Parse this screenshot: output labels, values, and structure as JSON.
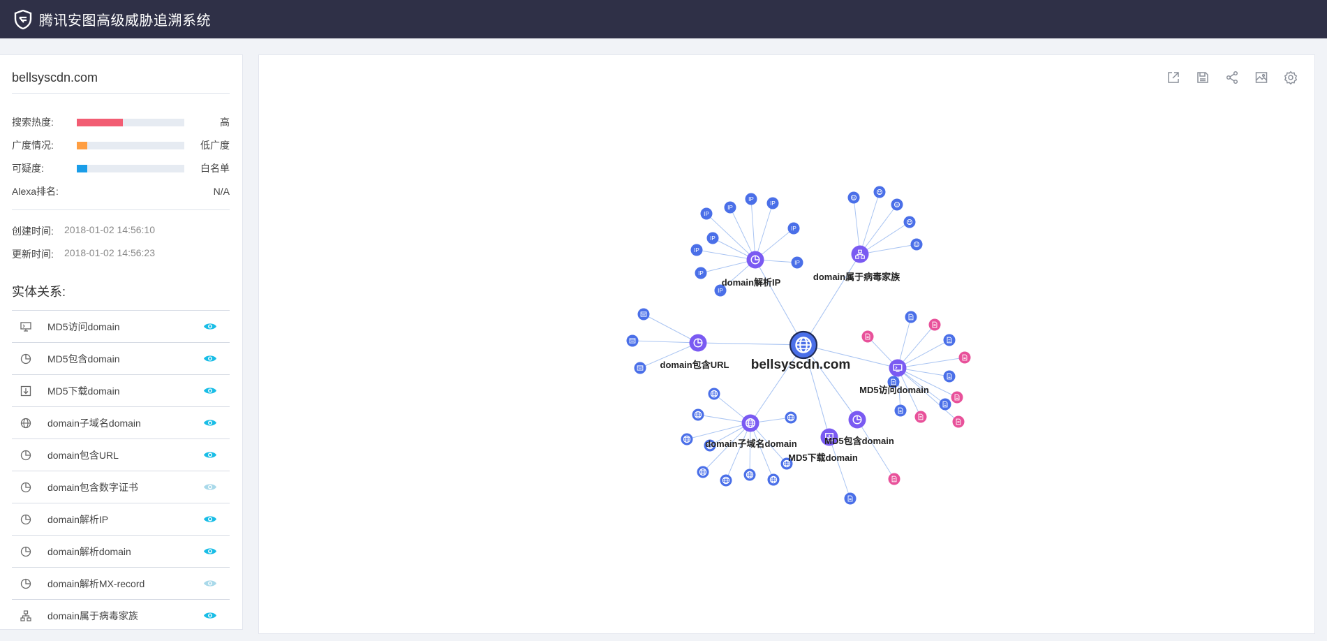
{
  "header": {
    "app_title": "腾讯安图高级威胁追溯系统",
    "logo_icon": "tencent-shield-logo"
  },
  "colors": {
    "header_bg": "#2f3047",
    "hot": "#f25d73",
    "breadth": "#ff9e42",
    "suspicion": "#1a9de8",
    "eye": "#19bde6",
    "eye_faded": "#a9d9ea",
    "node_blue": "#4a6fe8",
    "node_pink": "#e8519a",
    "node_hub": "#7a5af2"
  },
  "sidebar": {
    "domain": "bellsyscdn.com",
    "stats": [
      {
        "label": "搜索热度:",
        "fill": 0.43,
        "color": "#f25d73",
        "value": "高"
      },
      {
        "label": "广度情况:",
        "fill": 0.1,
        "color": "#ff9e42",
        "value": "低广度"
      },
      {
        "label": "可疑度:",
        "fill": 0.1,
        "color": "#1a9de8",
        "value": "白名单"
      }
    ],
    "alexa": {
      "label": "Alexa排名:",
      "value": "N/A"
    },
    "created": {
      "label": "创建时间:",
      "value": "2018-01-02 14:56:10"
    },
    "updated": {
      "label": "更新时间:",
      "value": "2018-01-02 14:56:23"
    },
    "relations_heading": "实体关系:",
    "relations": [
      {
        "label": "MD5访问domain",
        "icon": "monitor-icon",
        "visible": true
      },
      {
        "label": "MD5包含domain",
        "icon": "pie-icon",
        "visible": true
      },
      {
        "label": "MD5下载domain",
        "icon": "download-icon",
        "visible": true
      },
      {
        "label": "domain子域名domain",
        "icon": "globe-icon",
        "visible": true
      },
      {
        "label": "domain包含URL",
        "icon": "pie-icon",
        "visible": true
      },
      {
        "label": "domain包含数字证书",
        "icon": "pie-icon",
        "visible": false
      },
      {
        "label": "domain解析IP",
        "icon": "pie-icon",
        "visible": true
      },
      {
        "label": "domain解析domain",
        "icon": "pie-icon",
        "visible": true
      },
      {
        "label": "domain解析MX-record",
        "icon": "pie-icon",
        "visible": false
      },
      {
        "label": "domain属于病毒家族",
        "icon": "hierarchy-icon",
        "visible": true
      }
    ]
  },
  "toolbar": [
    "external-link-icon",
    "save-icon",
    "share-icon",
    "image-icon",
    "settings-icon"
  ],
  "graph": {
    "center": {
      "label": "bellsyscdn.com",
      "icon": "globe"
    },
    "hubs": [
      {
        "id": "ip",
        "label": "domain解析IP",
        "icon": "pie",
        "leaves": {
          "icon": "ip",
          "color": "blue",
          "count": 11
        }
      },
      {
        "id": "fam",
        "label": "domain属于病毒家族",
        "icon": "hierarchy",
        "leaves": {
          "icon": "virus",
          "color": "blue",
          "count": 5
        }
      },
      {
        "id": "url",
        "label": "domain包含URL",
        "icon": "pie",
        "leaves": {
          "icon": "url",
          "color": "blue",
          "count": 3
        }
      },
      {
        "id": "visit",
        "label": "MD5访问domain",
        "icon": "monitor",
        "leaves": {
          "icon": "file",
          "color": "mixed",
          "count": 12
        }
      },
      {
        "id": "sub",
        "label": "domain子域名domain",
        "icon": "globe",
        "leaves": {
          "icon": "globe",
          "color": "blue",
          "count": 11
        }
      },
      {
        "id": "contain",
        "label": "MD5包含domain",
        "icon": "pie",
        "leaves": {
          "icon": "file",
          "color": "pink",
          "count": 1
        }
      },
      {
        "id": "dl",
        "label": "MD5下载domain",
        "icon": "download",
        "leaves": {
          "icon": "file",
          "color": "blue",
          "count": 1
        }
      }
    ]
  }
}
